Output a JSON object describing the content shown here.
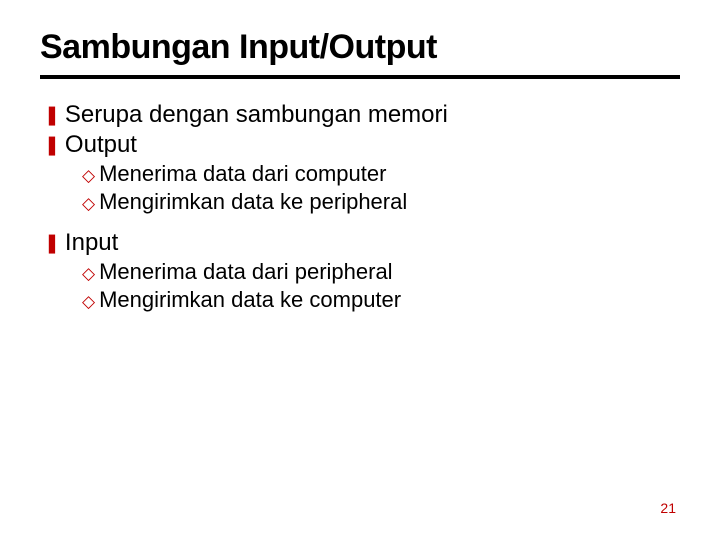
{
  "title": "Sambungan Input/Output",
  "colors": {
    "accent": "#c00000",
    "text": "#000000",
    "rule": "#000000",
    "background": "#ffffff"
  },
  "bullets": {
    "level1_glyph": "❚",
    "level2_glyph": "◇"
  },
  "items": {
    "l1_0": "Serupa dengan sambungan memori",
    "l1_1": "Output",
    "l1_1_sub": {
      "s0": "Menerima data dari computer",
      "s1": "Mengirimkan data ke peripheral"
    },
    "l1_2": "Input",
    "l1_2_sub": {
      "s0": "Menerima data dari peripheral",
      "s1": "Mengirimkan data ke computer"
    }
  },
  "page_number": "21"
}
